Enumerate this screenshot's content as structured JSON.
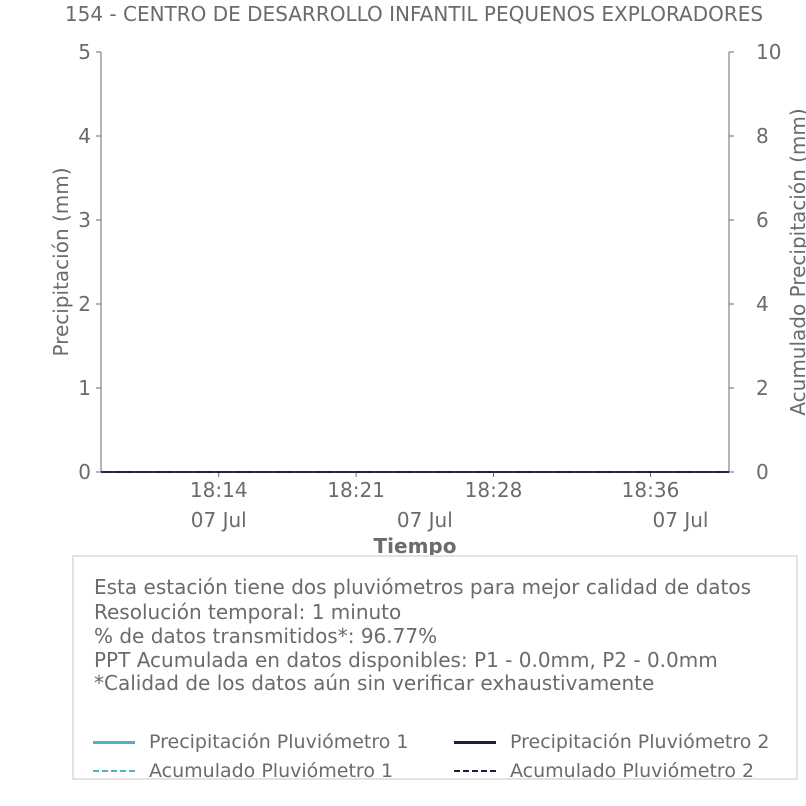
{
  "chart_data": {
    "type": "line",
    "title": "154 - CENTRO DE DESARROLLO INFANTIL PEQUENOS EXPLORADORES",
    "xlabel": "Tiempo",
    "ylabel": "Precipitación (mm)",
    "y2label": "Acumulado Precipitación (mm)",
    "ylim": [
      0,
      5
    ],
    "y2lim": [
      0,
      10
    ],
    "yticks": [
      0,
      1,
      2,
      3,
      4,
      5
    ],
    "y2ticks": [
      0,
      2,
      4,
      6,
      8,
      10
    ],
    "xlim": [
      "18:08",
      "18:40"
    ],
    "xticks": [
      {
        "time": "18:14",
        "date": "07 Jul"
      },
      {
        "time": "18:21",
        "date": "07 Jul"
      },
      {
        "time": "18:28",
        "date": "07 Jul"
      },
      {
        "time": "18:36",
        "date": "07 Jul"
      }
    ],
    "series": [
      {
        "name": "Precipitación Pluviómetro 1",
        "axis": "left",
        "style": "solid",
        "color": "#4bb3c8",
        "x": [
          "18:08",
          "18:40"
        ],
        "values": [
          0.0,
          0.0
        ]
      },
      {
        "name": "Precipitación Pluviómetro 2",
        "axis": "left",
        "style": "solid",
        "color": "#1c1c3a",
        "x": [
          "18:08",
          "18:40"
        ],
        "values": [
          0.0,
          0.0
        ]
      },
      {
        "name": "Acumulado Pluviómetro 1",
        "axis": "right",
        "style": "dashed",
        "color": "#4bb3c8",
        "x": [
          "18:08",
          "18:40"
        ],
        "values": [
          0.0,
          0.0
        ]
      },
      {
        "name": "Acumulado Pluviómetro 2",
        "axis": "right",
        "style": "dashed",
        "color": "#1c1c3a",
        "x": [
          "18:08",
          "18:40"
        ],
        "values": [
          0.0,
          0.0
        ]
      }
    ],
    "grid": false,
    "legend": "bottom"
  },
  "info": {
    "lines": [
      "Esta estación tiene dos pluviómetros para mejor calidad de datos",
      "Resolución temporal: 1 minuto",
      "% de datos transmitidos*: 96.77%",
      "PPT Acumulada en datos disponibles: P1 - 0.0mm, P2 - 0.0mm",
      "*Calidad de los datos aún sin verificar exhaustivamente"
    ]
  },
  "colors": {
    "text": "#6b6b6b",
    "axis": "#6b6b6b",
    "p1": "#4bb3c8",
    "p2": "#1c1c3a"
  }
}
